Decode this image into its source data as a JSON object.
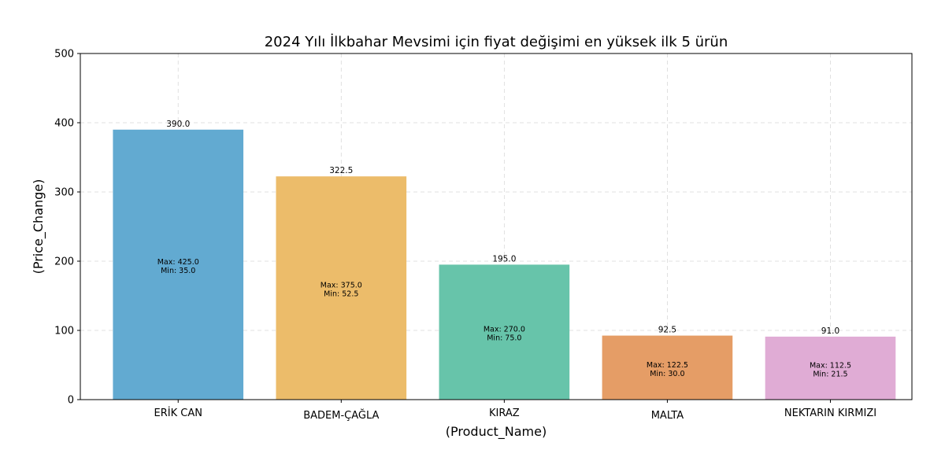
{
  "chart_data": {
    "type": "bar",
    "title": "2024 Yılı İlkbahar Mevsimi için fiyat değişimi en yüksek ilk 5 ürün",
    "xlabel": "(Product_Name)",
    "ylabel": "(Price_Change)",
    "categories": [
      "ERİK  CAN",
      "BADEM-ÇAĞLA",
      "KIRAZ",
      "MALTA",
      "NEKTARIN KIRMIZI"
    ],
    "values": [
      390.0,
      322.5,
      195.0,
      92.5,
      91.0
    ],
    "value_labels": [
      "390.0",
      "322.5",
      "195.0",
      "92.5",
      "91.0"
    ],
    "max_labels": [
      "Max: 425.0",
      "Max: 375.0",
      "Max: 270.0",
      "Max: 122.5",
      "Max: 112.5"
    ],
    "min_labels": [
      "Min: 35.0",
      "Min: 52.5",
      "Min: 75.0",
      "Min: 30.0",
      "Min: 21.5"
    ],
    "colors": [
      "#62aad1",
      "#ecbc6a",
      "#67c4aa",
      "#e59d66",
      "#e0acd5"
    ],
    "ylim": [
      0,
      500
    ],
    "yticks": [
      0,
      100,
      200,
      300,
      400,
      500
    ],
    "grid": true,
    "legend": "none"
  }
}
